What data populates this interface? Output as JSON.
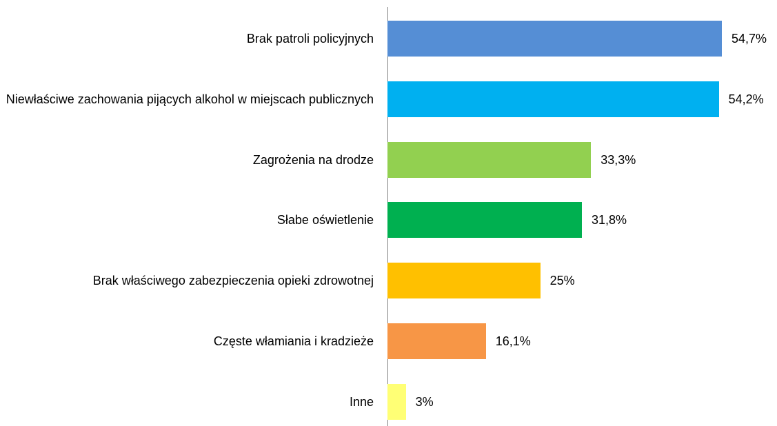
{
  "chart_data": {
    "type": "hbar",
    "categories": [
      "Brak patroli policyjnych",
      "Niewłaściwe zachowania pijących alkohol w miejscach publicznych",
      "Zagrożenia na drodze",
      "Słabe oświetlenie",
      "Brak właściwego zabezpieczenia opieki zdrowotnej",
      "Częste włamiania i kradzieże",
      "Inne"
    ],
    "values": [
      54.7,
      54.2,
      33.3,
      31.8,
      25,
      16.1,
      3
    ],
    "value_labels": [
      "54,7%",
      "54,2%",
      "33,3%",
      "31,8%",
      "25%",
      "16,1%",
      "3%"
    ],
    "colors": [
      "#558ed5",
      "#00b0f0",
      "#92d050",
      "#00b050",
      "#ffc000",
      "#f79646",
      "#ffff75"
    ]
  }
}
